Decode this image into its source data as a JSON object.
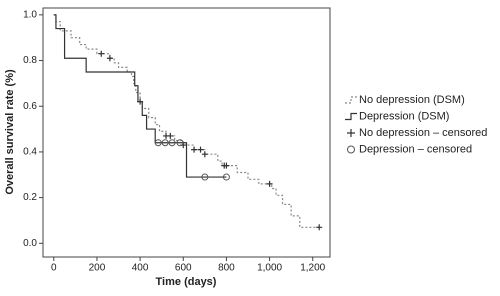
{
  "chart_data": {
    "type": "step",
    "xlabel": "Time (days)",
    "ylabel": "Overall survival rate (%)",
    "xlim": [
      -50,
      1280
    ],
    "ylim": [
      -0.06,
      1.03
    ],
    "xticks": [
      0,
      200,
      400,
      600,
      800,
      {
        "value": 1000,
        "label": "1,000"
      },
      {
        "value": 1200,
        "label": "1,200"
      }
    ],
    "yticks": [
      {
        "value": 0,
        "label": "0.0"
      },
      0.2,
      0.4,
      0.6,
      0.8,
      {
        "value": 1,
        "label": "1.0"
      }
    ],
    "series": [
      {
        "name": "No depression (DSM)",
        "color": "#888888",
        "dash": true,
        "x": [
          0,
          10,
          30,
          80,
          120,
          150,
          200,
          260,
          280,
          300,
          340,
          360,
          370,
          380,
          400,
          410,
          440,
          470,
          490,
          520,
          560,
          600,
          650,
          700,
          760,
          780,
          850,
          900,
          950,
          1010,
          1030,
          1060,
          1100,
          1140,
          1230
        ],
        "y": [
          1.0,
          0.97,
          0.93,
          0.9,
          0.87,
          0.85,
          0.83,
          0.81,
          0.79,
          0.77,
          0.75,
          0.73,
          0.7,
          0.66,
          0.62,
          0.59,
          0.55,
          0.52,
          0.49,
          0.47,
          0.45,
          0.43,
          0.41,
          0.39,
          0.36,
          0.34,
          0.31,
          0.28,
          0.26,
          0.24,
          0.21,
          0.17,
          0.12,
          0.07,
          0.07
        ]
      },
      {
        "name": "Depression (DSM)",
        "color": "#333333",
        "dash": false,
        "x": [
          0,
          10,
          50,
          150,
          375,
          390,
          410,
          430,
          470,
          615,
          800
        ],
        "y": [
          1.0,
          0.94,
          0.81,
          0.75,
          0.69,
          0.62,
          0.56,
          0.5,
          0.44,
          0.29,
          0.29
        ]
      },
      {
        "name": "No depression – censored",
        "color": "#333333",
        "marker": "plus",
        "x": [
          220,
          260,
          400,
          520,
          540,
          600,
          650,
          680,
          700,
          790,
          800,
          1000,
          1230
        ],
        "y": [
          0.83,
          0.81,
          0.62,
          0.47,
          0.47,
          0.43,
          0.41,
          0.41,
          0.39,
          0.34,
          0.34,
          0.26,
          0.07
        ]
      },
      {
        "name": "Depression – censored",
        "color": "#555555",
        "marker": "circle",
        "x": [
          484,
          516,
          548,
          585,
          700,
          800
        ],
        "y": [
          0.44,
          0.44,
          0.44,
          0.44,
          0.29,
          0.29
        ]
      }
    ]
  }
}
